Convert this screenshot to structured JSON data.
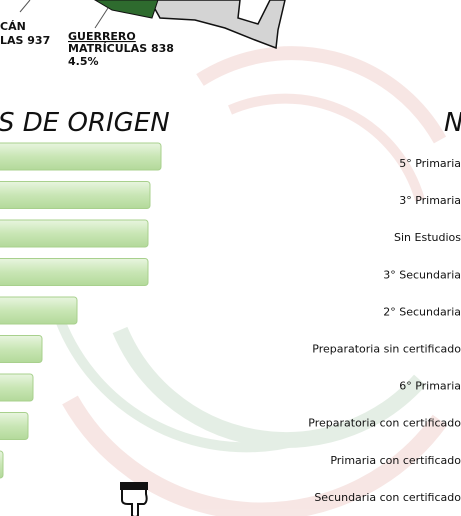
{
  "map": {
    "labels": [
      {
        "name": "CÁN",
        "detail": "LAS 937"
      },
      {
        "name": "GUERRERO",
        "detail": "MATRÍCULAS 838",
        "percent": "4.5%"
      }
    ]
  },
  "left_section": {
    "heading": "S DE ORIGEN",
    "bars": [
      161,
      150,
      148,
      148,
      77,
      42,
      33,
      28,
      3
    ]
  },
  "right_section": {
    "heading": "N",
    "items": [
      "5° Primaria",
      "3° Primaria",
      "Sin Estudios",
      "3° Secundaria",
      "2° Secundaria",
      "Preparatoria sin certificado",
      "6° Primaria",
      "Preparatoria con certificado",
      "Primaria con certificado",
      "Secundaria con certificado"
    ]
  }
}
